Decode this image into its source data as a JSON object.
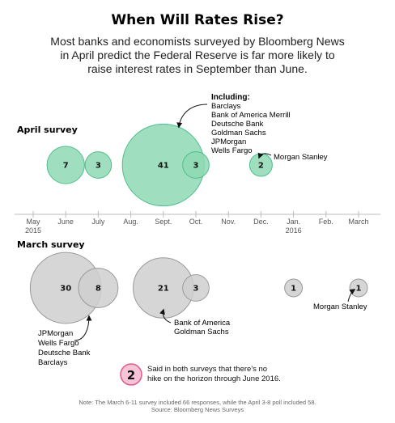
{
  "title": "When Will Rates Rise?",
  "subtitle_lines": [
    "Most banks and economists surveyed by Bloomberg News",
    "in April predict the Federal Reserve is far more likely to",
    "raise interest rates in September than June."
  ],
  "colors": {
    "april_fill": "#8ed9b4",
    "april_stroke": "#4cbf8c",
    "march_fill": "#cfcfcf",
    "march_stroke": "#9a9a9a",
    "highlight_fill": "#f6c4d6",
    "highlight_stroke": "#e05a8c",
    "axis": "#bbbbbb"
  },
  "chart_data": {
    "type": "scatter",
    "encoding": "bubble",
    "x_axis": {
      "ticks": [
        {
          "label": "May",
          "sublabel": "2015"
        },
        {
          "label": "June",
          "sublabel": ""
        },
        {
          "label": "July",
          "sublabel": ""
        },
        {
          "label": "Aug.",
          "sublabel": ""
        },
        {
          "label": "Sept.",
          "sublabel": ""
        },
        {
          "label": "Oct.",
          "sublabel": ""
        },
        {
          "label": "Nov.",
          "sublabel": ""
        },
        {
          "label": "Dec.",
          "sublabel": ""
        },
        {
          "label": "Jan.",
          "sublabel": "2016"
        },
        {
          "label": "Feb.",
          "sublabel": ""
        },
        {
          "label": "March",
          "sublabel": ""
        }
      ]
    },
    "series": [
      {
        "name": "April survey",
        "points": [
          {
            "x": "June",
            "value": 7
          },
          {
            "x": "July",
            "value": 3
          },
          {
            "x": "Sept.",
            "value": 41
          },
          {
            "x": "Oct.",
            "value": 3
          },
          {
            "x": "Dec.",
            "value": 2
          }
        ]
      },
      {
        "name": "March survey",
        "points": [
          {
            "x": "June",
            "value": 30
          },
          {
            "x": "July",
            "value": 8
          },
          {
            "x": "Sept.",
            "value": 21
          },
          {
            "x": "Oct.",
            "value": 3
          },
          {
            "x": "Jan.",
            "value": 1
          },
          {
            "x": "March",
            "value": 1
          }
        ]
      }
    ],
    "annotations": {
      "april_including_title": "Including:",
      "april_including_list": [
        "Barclays",
        "Bank of America Merrill",
        "Deutsche Bank",
        "Goldman Sachs",
        "JPMorgan",
        "Wells Fargo"
      ],
      "april_dec": "Morgan Stanley",
      "march_june_list": [
        "JPMorgan",
        "Wells Fargo",
        "Deutsche Bank",
        "Barclays"
      ],
      "march_oct_list": [
        "Bank of America",
        "Goldman Sachs"
      ],
      "march_march": "Morgan Stanley"
    },
    "no_hike": {
      "value": 2,
      "text_lines": [
        "Said in both surveys that there's no",
        "hike on the horizon through June 2016."
      ]
    },
    "footer_lines": [
      "Note: The March 6-11 survey included 66 responses, while the April 3-8 poll included 58.",
      "Source: Bloomberg News Surveys"
    ]
  }
}
